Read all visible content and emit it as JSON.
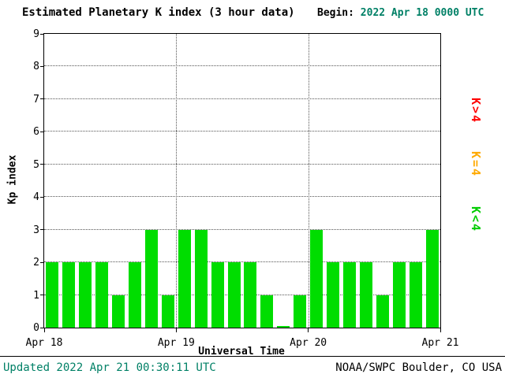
{
  "header": {
    "begin_label": "Begin:",
    "begin_value": "2022 Apr 18 0000 UTC"
  },
  "legend": {
    "items": [
      {
        "label": "K>4",
        "color": "#ff0000"
      },
      {
        "label": "K=4",
        "color": "#ffaa00"
      },
      {
        "label": "K<4",
        "color": "#00cc00"
      }
    ]
  },
  "footer": {
    "updated": "Updated 2022 Apr 21 00:30:11 UTC",
    "source": "NOAA/SWPC Boulder, CO USA"
  },
  "colors": {
    "bar": "#00dd00",
    "accent_text": "#008066",
    "grid": "#555555"
  },
  "chart_data": {
    "type": "bar",
    "title": "Estimated Planetary K index (3 hour data)",
    "xlabel": "Universal Time",
    "ylabel": "Kp index",
    "ylim": [
      0,
      9
    ],
    "y_ticks": [
      0,
      1,
      2,
      3,
      4,
      5,
      6,
      7,
      8,
      9
    ],
    "x_ticks": [
      "Apr 18",
      "Apr 19",
      "Apr 20",
      "Apr 21"
    ],
    "interval_hours": 3,
    "grid": "dotted",
    "legend_position": "right",
    "values": [
      2,
      2,
      2,
      2,
      1,
      2,
      3,
      1,
      3,
      3,
      2,
      2,
      2,
      1,
      0,
      1,
      3,
      2,
      2,
      2,
      1,
      2,
      2,
      3
    ]
  }
}
